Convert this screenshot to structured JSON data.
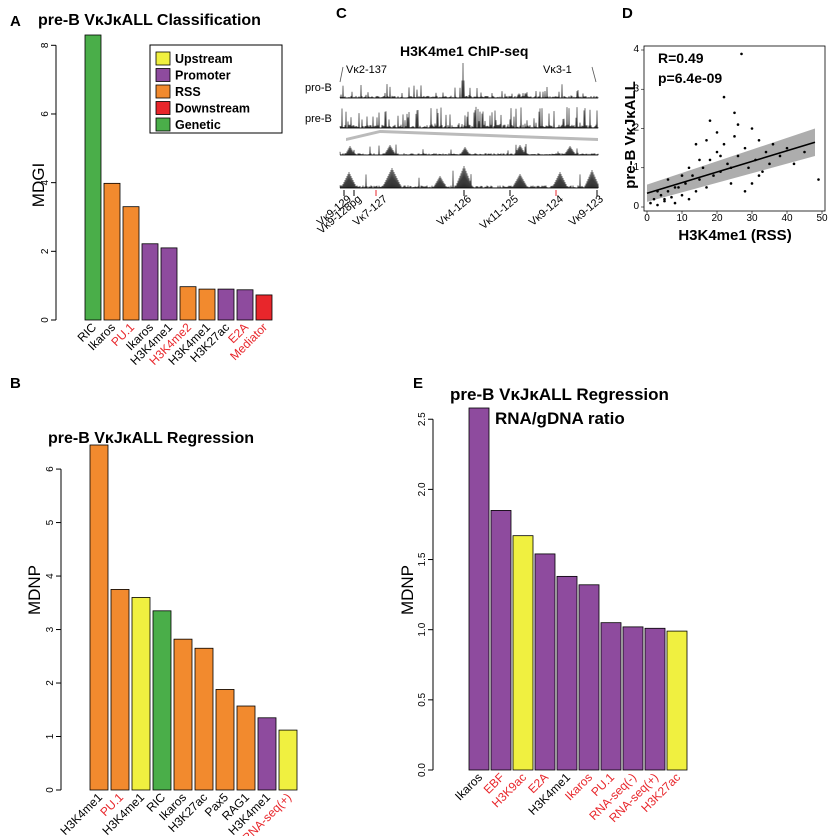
{
  "panels": {
    "a": {
      "label": "A"
    },
    "b": {
      "label": "B"
    },
    "c": {
      "label": "C"
    },
    "d": {
      "label": "D"
    },
    "e": {
      "label": "E"
    }
  },
  "colors": {
    "Upstream": "#f0f040",
    "Promoter": "#8e4b9e",
    "RSS": "#f28a2e",
    "Downstream": "#e8262b",
    "Genetic": "#4aae49",
    "red_label": "#e8262b",
    "black_label": "#000000"
  },
  "chart_data": [
    {
      "id": "A",
      "type": "bar",
      "title": "pre-B VκJκALL Classification",
      "ylabel": "MDGI",
      "ylim": [
        0,
        8.3
      ],
      "yticks": [
        0,
        2,
        4,
        6,
        8
      ],
      "legend": {
        "placement": "top-right",
        "entries": [
          "Upstream",
          "Promoter",
          "RSS",
          "Downstream",
          "Genetic"
        ]
      },
      "bars": [
        {
          "label": "RIC",
          "value": 8.3,
          "group": "Genetic",
          "red": false
        },
        {
          "label": "Ikaros",
          "value": 3.98,
          "group": "RSS",
          "red": false
        },
        {
          "label": "PU.1",
          "value": 3.3,
          "group": "RSS",
          "red": true
        },
        {
          "label": "Ikaros",
          "value": 2.22,
          "group": "Promoter",
          "red": false
        },
        {
          "label": "H3K4me1",
          "value": 2.1,
          "group": "Promoter",
          "red": false
        },
        {
          "label": "H3K4me2",
          "value": 0.97,
          "group": "RSS",
          "red": true
        },
        {
          "label": "H3K4me1",
          "value": 0.9,
          "group": "RSS",
          "red": false
        },
        {
          "label": "H3K27ac",
          "value": 0.9,
          "group": "Promoter",
          "red": false
        },
        {
          "label": "E2A",
          "value": 0.88,
          "group": "Promoter",
          "red": true
        },
        {
          "label": "Mediator",
          "value": 0.73,
          "group": "Downstream",
          "red": true
        }
      ]
    },
    {
      "id": "B",
      "type": "bar",
      "title": "pre-B VκJκALL Regression",
      "ylabel": "MDNP",
      "ylim": [
        0,
        6.45
      ],
      "yticks": [
        0,
        1,
        2,
        3,
        4,
        5,
        6
      ],
      "bars": [
        {
          "label": "H3K4me1",
          "value": 6.45,
          "group": "RSS",
          "red": false
        },
        {
          "label": "PU.1",
          "value": 3.75,
          "group": "RSS",
          "red": true
        },
        {
          "label": "H3K4me1",
          "value": 3.6,
          "group": "Upstream",
          "red": false
        },
        {
          "label": "RIC",
          "value": 3.35,
          "group": "Genetic",
          "red": false
        },
        {
          "label": "Ikaros",
          "value": 2.82,
          "group": "RSS",
          "red": false
        },
        {
          "label": "H3K27ac",
          "value": 2.65,
          "group": "RSS",
          "red": false
        },
        {
          "label": "Pax5",
          "value": 1.88,
          "group": "RSS",
          "red": false
        },
        {
          "label": "RAG1",
          "value": 1.57,
          "group": "RSS",
          "red": false
        },
        {
          "label": "H3K4me1",
          "value": 1.35,
          "group": "Promoter",
          "red": false
        },
        {
          "label": "RNA-seq(+)",
          "value": 1.12,
          "group": "Upstream",
          "red": true
        }
      ]
    },
    {
      "id": "C",
      "type": "area",
      "title": "H3K4me1 ChIP-seq",
      "tracks": [
        "pro-B",
        "pre-B"
      ],
      "region_labels": [
        "Vκ2-137",
        "Vκ3-1"
      ],
      "gene_labels": [
        "Vκ9-129",
        "Vκ9-128pg",
        "Vκ7-127",
        "Vκ4-126",
        "Vκ11-125",
        "Vκ9-124",
        "Vκ9-123"
      ]
    },
    {
      "id": "D",
      "type": "scatter",
      "xlabel": "H3K4me1 (RSS)",
      "ylabel": "pre-B VκJκALL",
      "xlim": [
        0,
        50
      ],
      "ylim": [
        0,
        4
      ],
      "xticks": [
        0,
        10,
        20,
        30,
        40,
        50
      ],
      "yticks": [
        0,
        1,
        2,
        3,
        4
      ],
      "annotations": [
        "R=0.49",
        "p=6.4e-09"
      ],
      "fit": {
        "x": [
          0,
          48
        ],
        "y": [
          0.35,
          1.65
        ],
        "band": [
          0.22,
          0.35
        ]
      },
      "points": [
        [
          1,
          0.1
        ],
        [
          2,
          0.2
        ],
        [
          3,
          0.05
        ],
        [
          4,
          0.3
        ],
        [
          5,
          0.15
        ],
        [
          6,
          0.4
        ],
        [
          7,
          0.25
        ],
        [
          8,
          0.1
        ],
        [
          9,
          0.5
        ],
        [
          10,
          0.3
        ],
        [
          11,
          0.6
        ],
        [
          12,
          0.2
        ],
        [
          13,
          0.8
        ],
        [
          14,
          0.4
        ],
        [
          15,
          0.7
        ],
        [
          16,
          1.0
        ],
        [
          17,
          0.5
        ],
        [
          18,
          1.2
        ],
        [
          19,
          0.8
        ],
        [
          20,
          1.4
        ],
        [
          21,
          0.9
        ],
        [
          22,
          1.6
        ],
        [
          23,
          1.1
        ],
        [
          24,
          0.6
        ],
        [
          25,
          1.8
        ],
        [
          26,
          1.3
        ],
        [
          27,
          3.9
        ],
        [
          28,
          1.5
        ],
        [
          29,
          1.0
        ],
        [
          30,
          2.0
        ],
        [
          31,
          1.2
        ],
        [
          32,
          1.7
        ],
        [
          33,
          0.9
        ],
        [
          34,
          1.4
        ],
        [
          35,
          1.1
        ],
        [
          36,
          1.6
        ],
        [
          38,
          1.3
        ],
        [
          40,
          1.5
        ],
        [
          42,
          1.1
        ],
        [
          45,
          1.4
        ],
        [
          49,
          0.7
        ],
        [
          22,
          2.8
        ],
        [
          18,
          2.2
        ],
        [
          25,
          2.4
        ],
        [
          14,
          1.6
        ],
        [
          20,
          1.9
        ],
        [
          10,
          0.8
        ],
        [
          6,
          0.7
        ],
        [
          3,
          0.4
        ],
        [
          28,
          0.4
        ],
        [
          24,
          1.0
        ],
        [
          30,
          0.6
        ],
        [
          15,
          1.2
        ],
        [
          12,
          1.0
        ],
        [
          26,
          2.1
        ],
        [
          32,
          0.8
        ],
        [
          17,
          1.7
        ],
        [
          21,
          1.3
        ],
        [
          8,
          0.5
        ],
        [
          5,
          0.2
        ]
      ]
    },
    {
      "id": "E",
      "type": "bar",
      "title": "pre-B VκJκALL Regression",
      "subtitle": "RNA/gDNA ratio",
      "ylabel": "MDNP",
      "ylim": [
        0,
        2.58
      ],
      "yticks": [
        0.0,
        0.5,
        1.0,
        1.5,
        2.0,
        2.5
      ],
      "bars": [
        {
          "label": "Ikaros",
          "value": 2.58,
          "group": "Promoter",
          "red": false
        },
        {
          "label": "EBF",
          "value": 1.85,
          "group": "Promoter",
          "red": true
        },
        {
          "label": "H3K9ac",
          "value": 1.67,
          "group": "Upstream",
          "red": true
        },
        {
          "label": "E2A",
          "value": 1.54,
          "group": "Promoter",
          "red": true
        },
        {
          "label": "H3K4me1",
          "value": 1.38,
          "group": "Promoter",
          "red": false
        },
        {
          "label": "Ikaros",
          "value": 1.32,
          "group": "Promoter",
          "red": true
        },
        {
          "label": "PU.1",
          "value": 1.05,
          "group": "Promoter",
          "red": true
        },
        {
          "label": "RNA-seq(-)",
          "value": 1.02,
          "group": "Promoter",
          "red": true
        },
        {
          "label": "RNA-seq(+)",
          "value": 1.01,
          "group": "Promoter",
          "red": true
        },
        {
          "label": "H3K27ac",
          "value": 0.99,
          "group": "Upstream",
          "red": true
        }
      ]
    }
  ]
}
